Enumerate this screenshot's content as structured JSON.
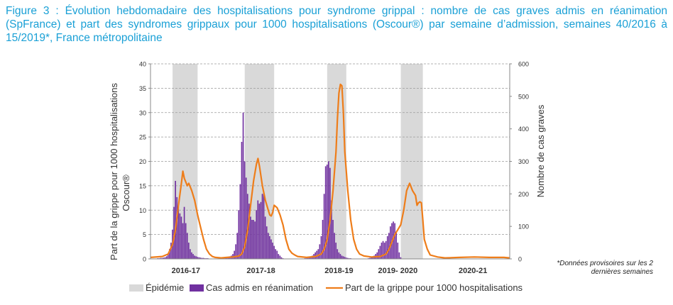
{
  "figure_title": "Figure 3 : Évolution hebdomadaire des hospitalisations pour syndrome grippal : nombre de cas graves admis en réanimation (SpFrance) et part des syndromes grippaux pour 1000 hospitalisations (Oscour®) par semaine d’admission, semaines 40/2016 à 15/2019*, France métropolitaine",
  "footnote": "*Données provisoires sur les 2 dernières semaines",
  "chart_data": {
    "type": "bar+line",
    "title": "Figure 3 : Évolution hebdomadaire des hospitalisations pour syndrome grippal",
    "ylabel_left_line1": "Part de la grippe pour 1000  hospitalisations",
    "ylabel_left_line2": "Oscour®",
    "ylabel_right": "Nombre de cas graves",
    "ylim_left": [
      0,
      40
    ],
    "yticks_left": [
      0,
      5,
      10,
      15,
      20,
      25,
      30,
      35,
      40
    ],
    "ylim_right": [
      0,
      600
    ],
    "yticks_right": [
      0,
      100,
      200,
      300,
      400,
      500,
      600
    ],
    "x_range_weeks": [
      0,
      244
    ],
    "season_labels": [
      {
        "label": "2016-17",
        "week": 24
      },
      {
        "label": "2017-18",
        "week": 75
      },
      {
        "label": "2018-19",
        "week": 128
      },
      {
        "label": "2019- 2020",
        "week": 168
      },
      {
        "label": "2020-21",
        "week": 219
      }
    ],
    "epidemic_periods": [
      [
        15,
        32
      ],
      [
        64,
        84
      ],
      [
        120,
        133
      ],
      [
        170,
        185
      ]
    ],
    "cas_reanimation": {
      "name": "Cas admis en réanimation",
      "color": "#7030a0",
      "axis": "right",
      "start_week": 5,
      "values": [
        2,
        2,
        3,
        3,
        4,
        5,
        8,
        15,
        30,
        50,
        90,
        160,
        240,
        190,
        160,
        140,
        130,
        110,
        160,
        110,
        80,
        50,
        30,
        20,
        15,
        10,
        8,
        6,
        5,
        4,
        3,
        3,
        2,
        2,
        2,
        1,
        1,
        1,
        1,
        1,
        1,
        1,
        2,
        2,
        3,
        3,
        4,
        5,
        7,
        8,
        10,
        15,
        25,
        45,
        80,
        150,
        230,
        360,
        450,
        300,
        250,
        200,
        170,
        130,
        120,
        120,
        115,
        150,
        180,
        170,
        175,
        200,
        205,
        130,
        100,
        80,
        70,
        60,
        50,
        40,
        30,
        25,
        15,
        10,
        5,
        2,
        1,
        1,
        1,
        1,
        1,
        1,
        1,
        1,
        1,
        1,
        1,
        1,
        1,
        1,
        2,
        2,
        3,
        5,
        8,
        10,
        15,
        20,
        25,
        30,
        45,
        70,
        120,
        200,
        285,
        290,
        300,
        280,
        180,
        120,
        80,
        50,
        30,
        20,
        15,
        10,
        8,
        6,
        4,
        3,
        2,
        2,
        1,
        1,
        1,
        1,
        1,
        1,
        1,
        1,
        1,
        1,
        1,
        2,
        3,
        5,
        8,
        10,
        15,
        20,
        30,
        40,
        50,
        55,
        50,
        55,
        70,
        80,
        100,
        110,
        115,
        110,
        80,
        50,
        20,
        5,
        0
      ]
    },
    "part_grippe": {
      "name": "Part de la grippe pour 1000 hospitalisations",
      "color": "#ee7d1a",
      "axis": "left",
      "points": [
        [
          0,
          0.3
        ],
        [
          8,
          0.5
        ],
        [
          12,
          1.0
        ],
        [
          15,
          3
        ],
        [
          17,
          6
        ],
        [
          19,
          11
        ],
        [
          21,
          15.5
        ],
        [
          22,
          18
        ],
        [
          23,
          16.5
        ],
        [
          25,
          15
        ],
        [
          26,
          15.5
        ],
        [
          28,
          14
        ],
        [
          30,
          12
        ],
        [
          32,
          9
        ],
        [
          34,
          6.5
        ],
        [
          36,
          4
        ],
        [
          38,
          2
        ],
        [
          40,
          1
        ],
        [
          42,
          0.5
        ],
        [
          44,
          0.3
        ],
        [
          48,
          0.2
        ],
        [
          52,
          0.3
        ],
        [
          56,
          0.4
        ],
        [
          60,
          0.6
        ],
        [
          62,
          1
        ],
        [
          64,
          2.5
        ],
        [
          66,
          6
        ],
        [
          68,
          11
        ],
        [
          70,
          16
        ],
        [
          72,
          19.5
        ],
        [
          73,
          20.6
        ],
        [
          74,
          19
        ],
        [
          76,
          15
        ],
        [
          78,
          12
        ],
        [
          80,
          10
        ],
        [
          81,
          9
        ],
        [
          82,
          8.8
        ],
        [
          83,
          9.5
        ],
        [
          84,
          11
        ],
        [
          86,
          10.5
        ],
        [
          88,
          9
        ],
        [
          90,
          7
        ],
        [
          92,
          4
        ],
        [
          94,
          2
        ],
        [
          96,
          1.2
        ],
        [
          98,
          0.8
        ],
        [
          100,
          0.5
        ],
        [
          106,
          0.3
        ],
        [
          112,
          0.5
        ],
        [
          116,
          1
        ],
        [
          118,
          2
        ],
        [
          120,
          4
        ],
        [
          122,
          8
        ],
        [
          124,
          14
        ],
        [
          126,
          22
        ],
        [
          127,
          29
        ],
        [
          128,
          34
        ],
        [
          129,
          35.8
        ],
        [
          130,
          35.5
        ],
        [
          131,
          30
        ],
        [
          132,
          22
        ],
        [
          134,
          14
        ],
        [
          136,
          8
        ],
        [
          138,
          4
        ],
        [
          140,
          2
        ],
        [
          142,
          1
        ],
        [
          145,
          0.6
        ],
        [
          150,
          0.4
        ],
        [
          156,
          0.5
        ],
        [
          160,
          1
        ],
        [
          162,
          2
        ],
        [
          164,
          3.5
        ],
        [
          166,
          5
        ],
        [
          168,
          6
        ],
        [
          170,
          7
        ],
        [
          172,
          10
        ],
        [
          174,
          14
        ],
        [
          176,
          15.5
        ],
        [
          178,
          14
        ],
        [
          180,
          13
        ],
        [
          181,
          11
        ],
        [
          182,
          11.5
        ],
        [
          183,
          11.7
        ],
        [
          184,
          11.5
        ],
        [
          185,
          8
        ],
        [
          186,
          4
        ],
        [
          188,
          2
        ],
        [
          190,
          0.8
        ],
        [
          195,
          0.4
        ],
        [
          200,
          0.2
        ],
        [
          210,
          0.3
        ],
        [
          220,
          0.4
        ],
        [
          230,
          0.3
        ],
        [
          240,
          0.3
        ],
        [
          244,
          0.2
        ]
      ]
    },
    "legend": {
      "position": "bottom",
      "items": [
        "Épidémie",
        "Cas admis en réanimation",
        "Part de la grippe pour 1000 hospitalisations"
      ]
    }
  }
}
